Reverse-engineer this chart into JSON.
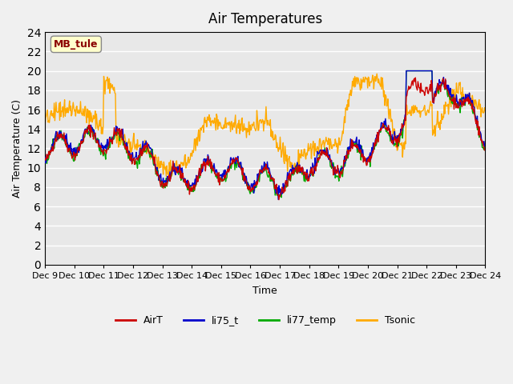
{
  "title": "Air Temperatures",
  "ylabel": "Air Temperature (C)",
  "xlabel": "Time",
  "ylim": [
    0,
    24
  ],
  "yticks": [
    0,
    2,
    4,
    6,
    8,
    10,
    12,
    14,
    16,
    18,
    20,
    22,
    24
  ],
  "xtick_labels": [
    "Dec 9",
    "Dec 10",
    "Dec 11",
    "Dec 12",
    "Dec 13",
    "Dec 14",
    "Dec 15",
    "Dec 16",
    "Dec 17",
    "Dec 18",
    "Dec 19",
    "Dec 20",
    "Dec 21",
    "Dec 22",
    "Dec 23",
    "Dec 24"
  ],
  "bg_color": "#e8e8e8",
  "fig_color": "#f0f0f0",
  "annotation_text": "MB_tule",
  "annotation_color": "#8b0000",
  "annotation_bg": "#ffffcc",
  "line_colors": {
    "AirT": "#cc0000",
    "li75_t": "#0000cc",
    "li77_temp": "#00aa00",
    "Tsonic": "#ffaa00"
  },
  "legend_labels": [
    "AirT",
    "li75_t",
    "li77_temp",
    "Tsonic"
  ]
}
